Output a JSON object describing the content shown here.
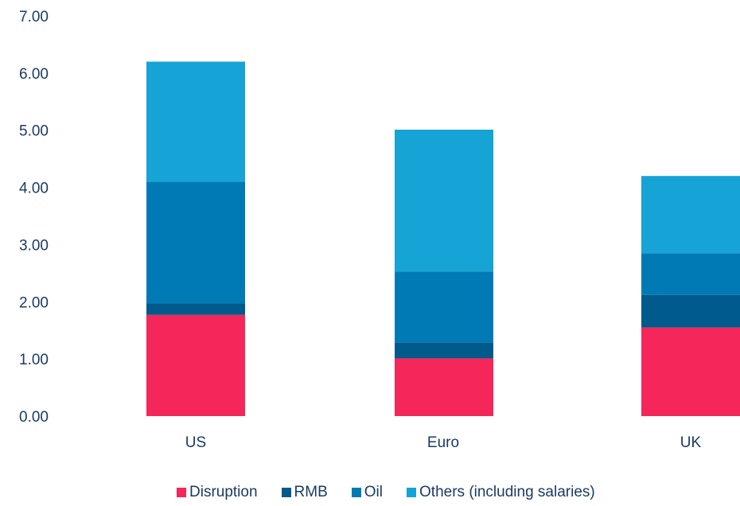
{
  "chart_data": {
    "type": "bar",
    "stacked": true,
    "categories": [
      "US",
      "Euro",
      "UK"
    ],
    "series": [
      {
        "name": "Disruption",
        "color": "#f4265a",
        "values": [
          1.77,
          1.01,
          1.55
        ]
      },
      {
        "name": "RMB",
        "color": "#005a8c",
        "values": [
          0.2,
          0.28,
          0.57
        ]
      },
      {
        "name": "Oil",
        "color": "#007ab5",
        "values": [
          2.13,
          1.24,
          0.73
        ]
      },
      {
        "name": "Others (including salaries)",
        "color": "#16a3d5",
        "values": [
          2.1,
          2.48,
          1.35
        ]
      }
    ],
    "ylim": [
      0,
      7
    ],
    "yticks": [
      "0.00",
      "1.00",
      "2.00",
      "3.00",
      "4.00",
      "5.00",
      "6.00",
      "7.00"
    ],
    "grid": false,
    "legend": "bottom"
  }
}
